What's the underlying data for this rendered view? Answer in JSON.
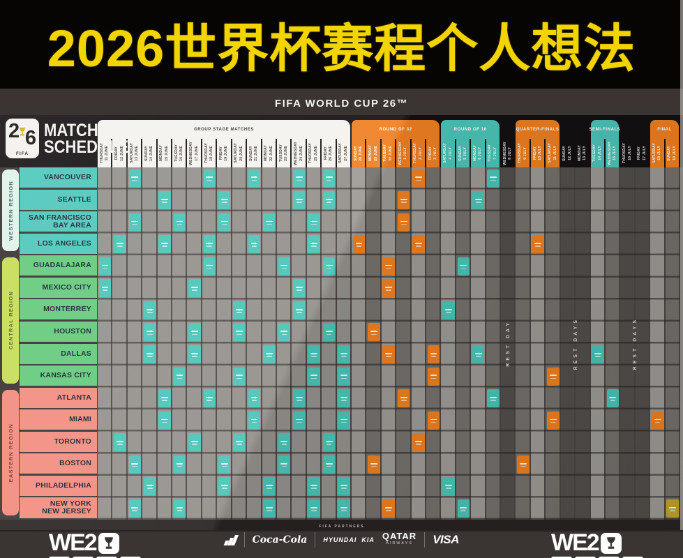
{
  "title": "2026世界杯赛程个人想法",
  "header": {
    "competition": "FIFA WORLD CUP 26™"
  },
  "schedule": {
    "logo": {
      "digit2": "2",
      "digit6": "6",
      "fifa": "FIFA",
      "title_line1": "MATCH",
      "title_line2": "SCHEDULE"
    }
  },
  "chart_data": {
    "type": "table",
    "title": "FIFA World Cup 26 match schedule by host city and date",
    "legend": {
      "group": "#49c4b7",
      "round_of_32": "#ef8021",
      "round_of_16": "#49c4b7",
      "quarter_finals": "#ef8021",
      "semi_finals": "#49c4b7",
      "bronze": "#ef8021",
      "final": "#c3a527"
    },
    "stages": [
      {
        "label": "GROUP STAGE MATCHES",
        "theme": "white",
        "colStart": 0,
        "colSpan": 17
      },
      {
        "label": "ROUND OF 32",
        "theme": "orange",
        "colStart": 17,
        "colSpan": 6
      },
      {
        "label": "ROUND OF 16",
        "theme": "teal",
        "colStart": 23,
        "colSpan": 4
      },
      {
        "label": "QUARTER-FINALS",
        "theme": "orange",
        "colStart": 28,
        "colSpan": 3
      },
      {
        "label": "SEMI-FINALS",
        "theme": "teal",
        "colStart": 33,
        "colSpan": 2
      },
      {
        "label": "FINAL",
        "theme": "orange",
        "colStart": 37,
        "colSpan": 2
      }
    ],
    "columns": [
      {
        "day": "THURSDAY",
        "date": "11 JUNE",
        "section": "group"
      },
      {
        "day": "FRIDAY",
        "date": "12 JUNE",
        "section": "group"
      },
      {
        "day": "SATURDAY",
        "date": "13 JUNE",
        "section": "group"
      },
      {
        "day": "SUNDAY",
        "date": "14 JUNE",
        "section": "group"
      },
      {
        "day": "MONDAY",
        "date": "15 JUNE",
        "section": "group"
      },
      {
        "day": "TUESDAY",
        "date": "16 JUNE",
        "section": "group"
      },
      {
        "day": "WEDNESDAY",
        "date": "17 JUNE",
        "section": "group"
      },
      {
        "day": "THURSDAY",
        "date": "18 JUNE",
        "section": "group"
      },
      {
        "day": "FRIDAY",
        "date": "19 JUNE",
        "section": "group"
      },
      {
        "day": "SATURDAY",
        "date": "20 JUNE",
        "section": "group"
      },
      {
        "day": "SUNDAY",
        "date": "21 JUNE",
        "section": "group"
      },
      {
        "day": "MONDAY",
        "date": "22 JUNE",
        "section": "group"
      },
      {
        "day": "TUESDAY",
        "date": "23 JUNE",
        "section": "group"
      },
      {
        "day": "WEDNESDAY",
        "date": "24 JUNE",
        "section": "group"
      },
      {
        "day": "THURSDAY",
        "date": "25 JUNE",
        "section": "group"
      },
      {
        "day": "FRIDAY",
        "date": "26 JUNE",
        "section": "group"
      },
      {
        "day": "SATURDAY",
        "date": "27 JUNE",
        "section": "group"
      },
      {
        "day": "SUNDAY",
        "date": "28 JUNE",
        "section": "r32"
      },
      {
        "day": "MONDAY",
        "date": "29 JUNE",
        "section": "r32"
      },
      {
        "day": "TUESDAY",
        "date": "30 JUNE",
        "section": "r32"
      },
      {
        "day": "WEDNESDAY",
        "date": "1 JULY",
        "section": "r32"
      },
      {
        "day": "THURSDAY",
        "date": "2 JULY",
        "section": "r32"
      },
      {
        "day": "FRIDAY",
        "date": "3 JULY",
        "section": "r32"
      },
      {
        "day": "SATURDAY",
        "date": "4 JULY",
        "section": "r16"
      },
      {
        "day": "SUNDAY",
        "date": "5 JULY",
        "section": "r16"
      },
      {
        "day": "MONDAY",
        "date": "6 JULY",
        "section": "r16"
      },
      {
        "day": "TUESDAY",
        "date": "7 JULY",
        "section": "r16"
      },
      {
        "day": "WEDNESDAY",
        "date": "8 JULY",
        "section": "rest"
      },
      {
        "day": "THURSDAY",
        "date": "9 JULY",
        "section": "qf"
      },
      {
        "day": "FRIDAY",
        "date": "10 JULY",
        "section": "qf"
      },
      {
        "day": "SATURDAY",
        "date": "11 JULY",
        "section": "qf"
      },
      {
        "day": "SUNDAY",
        "date": "12 JULY",
        "section": "rest"
      },
      {
        "day": "MONDAY",
        "date": "13 JULY",
        "section": "rest"
      },
      {
        "day": "TUESDAY",
        "date": "14 JULY",
        "section": "sf"
      },
      {
        "day": "WEDNESDAY",
        "date": "15 JULY",
        "section": "sf"
      },
      {
        "day": "THURSDAY",
        "date": "16 JULY",
        "section": "rest"
      },
      {
        "day": "FRIDAY",
        "date": "17 JULY",
        "section": "rest"
      },
      {
        "day": "SATURDAY",
        "date": "18 JULY",
        "section": "final"
      },
      {
        "day": "SUNDAY",
        "date": "19 JULY",
        "section": "final"
      }
    ],
    "rest_labels": [
      {
        "text": "REST DAY",
        "cols": [
          27,
          27
        ]
      },
      {
        "text": "REST DAYS",
        "cols": [
          31,
          32
        ]
      },
      {
        "text": "REST DAYS",
        "cols": [
          35,
          36
        ]
      }
    ],
    "regions": [
      {
        "name": "WESTERN REGION",
        "tab_bg": "#dff2ea",
        "tab_text": "#3f5c56",
        "city_bg": "#4cc6ba",
        "cities": [
          {
            "label": "VANCOUVER",
            "cells": [
              [
                2,
                "group"
              ],
              [
                7,
                "group"
              ],
              [
                10,
                "group"
              ],
              [
                13,
                "group"
              ],
              [
                15,
                "group"
              ],
              [
                21,
                "r32"
              ],
              [
                26,
                "r16"
              ]
            ]
          },
          {
            "label": "SEATTLE",
            "cells": [
              [
                4,
                "group"
              ],
              [
                8,
                "group"
              ],
              [
                13,
                "group"
              ],
              [
                15,
                "group"
              ],
              [
                20,
                "r32"
              ],
              [
                25,
                "r16"
              ]
            ]
          },
          {
            "label": "SAN FRANCISCO\nBAY AREA",
            "cells": [
              [
                2,
                "group"
              ],
              [
                5,
                "group"
              ],
              [
                8,
                "group"
              ],
              [
                11,
                "group"
              ],
              [
                14,
                "group"
              ],
              [
                20,
                "r32"
              ]
            ]
          },
          {
            "label": "LOS ANGELES",
            "cells": [
              [
                1,
                "group"
              ],
              [
                4,
                "group"
              ],
              [
                7,
                "group"
              ],
              [
                10,
                "group"
              ],
              [
                14,
                "group"
              ],
              [
                17,
                "r32"
              ],
              [
                21,
                "r32"
              ],
              [
                29,
                "qf"
              ]
            ]
          }
        ]
      },
      {
        "name": "CENTRAL REGION",
        "tab_bg": "#c6dc55",
        "tab_text": "#55601c",
        "city_bg": "#62c97b",
        "cities": [
          {
            "label": "GUADALAJARA",
            "cells": [
              [
                0,
                "group"
              ],
              [
                7,
                "group"
              ],
              [
                12,
                "group"
              ],
              [
                15,
                "group"
              ],
              [
                19,
                "r32"
              ],
              [
                24,
                "r16"
              ]
            ]
          },
          {
            "label": "MEXICO CITY",
            "cells": [
              [
                0,
                "group"
              ],
              [
                6,
                "group"
              ],
              [
                13,
                "group"
              ],
              [
                19,
                "r32"
              ]
            ]
          },
          {
            "label": "MONTERREY",
            "cells": [
              [
                3,
                "group"
              ],
              [
                9,
                "group"
              ],
              [
                13,
                "group"
              ],
              [
                23,
                "r16"
              ]
            ]
          },
          {
            "label": "HOUSTON",
            "cells": [
              [
                3,
                "group"
              ],
              [
                6,
                "group"
              ],
              [
                9,
                "group"
              ],
              [
                12,
                "group"
              ],
              [
                15,
                "group"
              ],
              [
                18,
                "r32"
              ]
            ]
          },
          {
            "label": "DALLAS",
            "cells": [
              [
                3,
                "group"
              ],
              [
                6,
                "group"
              ],
              [
                11,
                "group"
              ],
              [
                14,
                "group"
              ],
              [
                16,
                "group"
              ],
              [
                19,
                "r32"
              ],
              [
                22,
                "r32"
              ],
              [
                25,
                "r16"
              ],
              [
                33,
                "sf"
              ]
            ]
          },
          {
            "label": "KANSAS CITY",
            "cells": [
              [
                5,
                "group"
              ],
              [
                9,
                "group"
              ],
              [
                14,
                "group"
              ],
              [
                16,
                "group"
              ],
              [
                22,
                "r32"
              ],
              [
                30,
                "qf"
              ]
            ]
          }
        ]
      },
      {
        "name": "EASTERN REGION",
        "tab_bg": "#f18a7c",
        "tab_text": "#7c2f24",
        "city_bg": "#f28b7d",
        "cities": [
          {
            "label": "ATLANTA",
            "cells": [
              [
                4,
                "group"
              ],
              [
                7,
                "group"
              ],
              [
                10,
                "group"
              ],
              [
                13,
                "group"
              ],
              [
                16,
                "group"
              ],
              [
                20,
                "r32"
              ],
              [
                26,
                "r16"
              ],
              [
                34,
                "sf"
              ]
            ]
          },
          {
            "label": "MIAMI",
            "cells": [
              [
                4,
                "group"
              ],
              [
                10,
                "group"
              ],
              [
                13,
                "group"
              ],
              [
                16,
                "group"
              ],
              [
                22,
                "r32"
              ],
              [
                30,
                "qf"
              ],
              [
                37,
                "bronze"
              ]
            ]
          },
          {
            "label": "TORONTO",
            "cells": [
              [
                1,
                "group"
              ],
              [
                6,
                "group"
              ],
              [
                9,
                "group"
              ],
              [
                12,
                "group"
              ],
              [
                15,
                "group"
              ],
              [
                21,
                "r32"
              ]
            ]
          },
          {
            "label": "BOSTON",
            "cells": [
              [
                2,
                "group"
              ],
              [
                5,
                "group"
              ],
              [
                8,
                "group"
              ],
              [
                12,
                "group"
              ],
              [
                15,
                "group"
              ],
              [
                18,
                "r32"
              ],
              [
                28,
                "qf"
              ]
            ]
          },
          {
            "label": "PHILADELPHIA",
            "cells": [
              [
                3,
                "group"
              ],
              [
                8,
                "group"
              ],
              [
                11,
                "group"
              ],
              [
                14,
                "group"
              ],
              [
                16,
                "group"
              ],
              [
                23,
                "r16"
              ]
            ]
          },
          {
            "label": "NEW YORK\nNEW JERSEY",
            "cells": [
              [
                2,
                "group"
              ],
              [
                5,
                "group"
              ],
              [
                11,
                "group"
              ],
              [
                14,
                "group"
              ],
              [
                16,
                "group"
              ],
              [
                19,
                "r32"
              ],
              [
                24,
                "r16"
              ],
              [
                38,
                "final"
              ]
            ]
          }
        ]
      }
    ]
  },
  "footer": {
    "partners_label": "FIFA PARTNERS",
    "we_wordmark": "WE2",
    "sponsors": {
      "cocacola": "Coca-Cola",
      "hyundai": "HYUNDAI",
      "kia": "KIA",
      "qatar_line1": "QATAR",
      "qatar_line2": "AIRWAYS",
      "visa": "VISA"
    }
  }
}
